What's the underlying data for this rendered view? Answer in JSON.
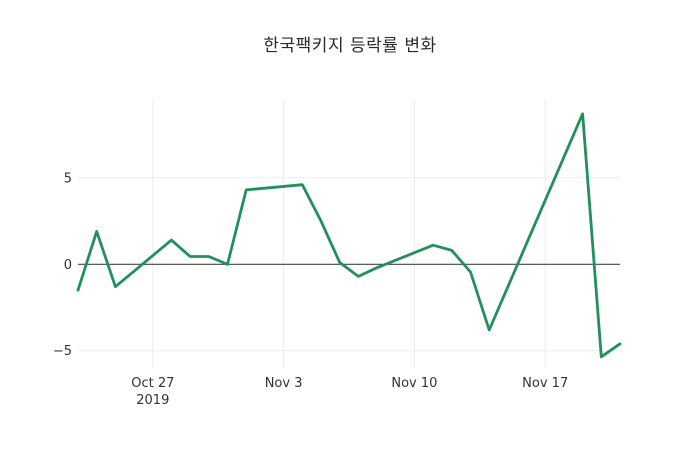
{
  "title": "한국팩키지 등락률 변화",
  "chart_data": {
    "type": "line",
    "title": "한국팩키지 등락률 변화",
    "xlabel": "",
    "ylabel": "",
    "grid": true,
    "legend": false,
    "x_range": [
      "2019-10-23",
      "2019-11-21"
    ],
    "y_range": [
      -6.0,
      9.5
    ],
    "line_color": "#22905a",
    "line_width": 2.8,
    "zero_line_color": "#444444",
    "grid_color": "#ebebeb",
    "tick_color": "#333333",
    "series": [
      {
        "x": [
          "2019-10-23",
          "2019-10-24",
          "2019-10-25",
          "2019-10-28",
          "2019-10-29",
          "2019-10-30",
          "2019-10-31",
          "2019-11-01",
          "2019-11-04",
          "2019-11-05",
          "2019-11-06",
          "2019-11-07",
          "2019-11-08",
          "2019-11-11",
          "2019-11-12",
          "2019-11-13",
          "2019-11-14",
          "2019-11-15",
          "2019-11-18",
          "2019-11-19",
          "2019-11-20",
          "2019-11-21"
        ],
        "y": [
          -1.5,
          1.9,
          -1.3,
          1.4,
          0.45,
          0.45,
          0.0,
          4.3,
          4.6,
          2.5,
          0.1,
          -0.7,
          -0.2,
          1.1,
          0.8,
          -0.45,
          -3.8,
          -1.3,
          6.2,
          8.7,
          -5.35,
          -4.6
        ]
      }
    ],
    "x_ticks": [
      {
        "date": "2019-10-27",
        "label": "Oct 27",
        "sublabel": "2019"
      },
      {
        "date": "2019-11-03",
        "label": "Nov 3",
        "sublabel": ""
      },
      {
        "date": "2019-11-10",
        "label": "Nov 10",
        "sublabel": ""
      },
      {
        "date": "2019-11-17",
        "label": "Nov 17",
        "sublabel": ""
      }
    ],
    "y_ticks": [
      {
        "value": 5,
        "label": "5"
      },
      {
        "value": 0,
        "label": "0"
      },
      {
        "value": -5,
        "label": "−5"
      }
    ]
  }
}
